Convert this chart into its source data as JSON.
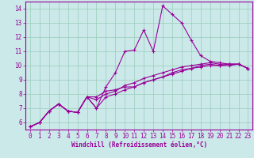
{
  "title": "",
  "xlabel": "Windchill (Refroidissement éolien,°C)",
  "ylabel": "",
  "bg_color": "#cbe9e9",
  "line_color": "#990099",
  "grid_color": "#99ccbb",
  "xlim": [
    -0.5,
    23.5
  ],
  "ylim": [
    5.5,
    14.5
  ],
  "xticks": [
    0,
    1,
    2,
    3,
    4,
    5,
    6,
    7,
    8,
    9,
    10,
    11,
    12,
    13,
    14,
    15,
    16,
    17,
    18,
    19,
    20,
    21,
    22,
    23
  ],
  "yticks": [
    6,
    7,
    8,
    9,
    10,
    11,
    12,
    13,
    14
  ],
  "lines": [
    [
      5.7,
      6.0,
      6.8,
      7.3,
      6.8,
      6.7,
      7.8,
      7.0,
      8.5,
      9.5,
      11.0,
      11.1,
      12.5,
      11.0,
      14.2,
      13.6,
      13.0,
      11.8,
      10.7,
      10.3,
      10.2,
      10.1,
      10.1,
      9.8
    ],
    [
      5.7,
      6.0,
      6.8,
      7.3,
      6.8,
      6.7,
      7.8,
      7.8,
      8.2,
      8.3,
      8.5,
      8.5,
      8.8,
      9.0,
      9.2,
      9.4,
      9.6,
      9.8,
      10.0,
      10.1,
      10.0,
      10.1,
      10.1,
      9.8
    ],
    [
      5.7,
      6.0,
      6.8,
      7.3,
      6.8,
      6.7,
      7.8,
      7.0,
      7.8,
      8.0,
      8.3,
      8.5,
      8.8,
      9.0,
      9.2,
      9.5,
      9.7,
      9.8,
      9.9,
      10.0,
      10.0,
      10.0,
      10.1,
      9.8
    ],
    [
      5.7,
      6.0,
      6.8,
      7.3,
      6.8,
      6.7,
      7.8,
      7.6,
      8.0,
      8.2,
      8.6,
      8.8,
      9.1,
      9.3,
      9.5,
      9.7,
      9.9,
      10.0,
      10.1,
      10.2,
      10.1,
      10.1,
      10.1,
      9.8
    ]
  ],
  "marker": "+",
  "markersize": 3,
  "linewidth": 0.8,
  "tick_fontsize": 5.5,
  "xlabel_fontsize": 5.5
}
